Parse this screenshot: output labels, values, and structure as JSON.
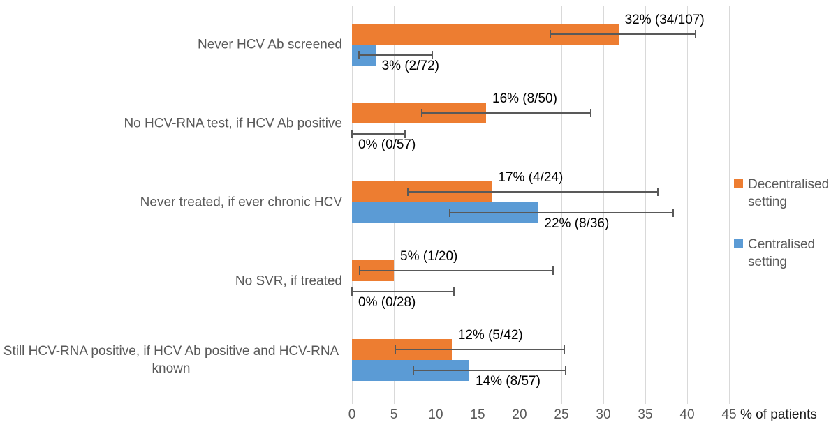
{
  "chart_data": {
    "type": "bar",
    "orientation": "horizontal",
    "title": "",
    "xlabel": "% of patients",
    "xlim": [
      0,
      45
    ],
    "xticks": [
      0,
      5,
      10,
      15,
      20,
      25,
      30,
      35,
      40,
      45
    ],
    "grid": true,
    "legend_position": "right",
    "categories": [
      "Never HCV Ab screened",
      "No HCV-RNA test, if HCV Ab positive",
      "Never treated, if ever chronic HCV",
      "No SVR, if treated",
      "Still HCV-RNA positive, if HCV Ab positive and HCV-RNA known"
    ],
    "series": [
      {
        "name": "Decentralised setting",
        "color": "#ED7D31",
        "values": [
          31.8,
          16.0,
          16.7,
          5.0,
          11.9
        ],
        "labels": [
          "32% (34/107)",
          "16% (8/50)",
          "17% (4/24)",
          "5% (1/20)",
          "12% (5/42)"
        ],
        "ci_low": [
          23.7,
          8.3,
          6.7,
          0.9,
          5.2
        ],
        "ci_high": [
          41.0,
          28.5,
          36.5,
          24.0,
          25.3
        ]
      },
      {
        "name": "Centralised setting",
        "color": "#5B9BD5",
        "values": [
          2.8,
          0,
          22.2,
          0,
          14.0
        ],
        "labels": [
          "3% (2/72)",
          "0% (0/57)",
          "22% (8/36)",
          "0% (0/28)",
          "14% (8/57)"
        ],
        "ci_low": [
          0.8,
          0,
          11.7,
          0,
          7.3
        ],
        "ci_high": [
          9.6,
          6.3,
          38.3,
          12.2,
          25.5
        ]
      }
    ]
  },
  "legend": {
    "items": [
      {
        "label": "Decentralised setting",
        "color": "#ED7D31"
      },
      {
        "label": "Centralised setting",
        "color": "#5B9BD5"
      }
    ]
  },
  "axis": {
    "title": "% of patients"
  },
  "colors": {
    "background": "#FFFFFF",
    "gridline": "#D9D9D9",
    "axis_text": "#595959",
    "category_text": "#595959",
    "data_label_text": "#000000",
    "error_bar": "#595959"
  }
}
